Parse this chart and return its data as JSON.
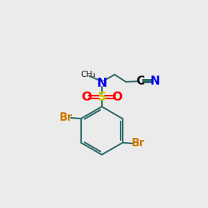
{
  "background_color": "#ebebeb",
  "bond_color": "#2d6b6b",
  "N_color": "#0000ee",
  "S_color": "#cccc00",
  "O_color": "#ff0000",
  "Br_color": "#cc7700",
  "C_color": "#111111",
  "figsize": [
    3.0,
    3.0
  ],
  "dpi": 100,
  "xlim": [
    0,
    10
  ],
  "ylim": [
    0,
    10
  ]
}
